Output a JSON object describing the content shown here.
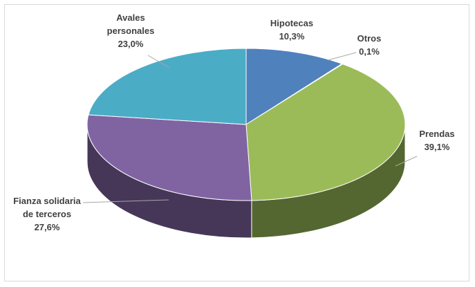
{
  "chart_data": {
    "type": "pie",
    "title": "",
    "slices": [
      {
        "label_lines": [
          "Hipotecas"
        ],
        "value": 10.3,
        "value_label": "10,3%",
        "color": "#4f81bd"
      },
      {
        "label_lines": [
          "Otros"
        ],
        "value": 0.1,
        "value_label": "0,1%",
        "color": "#c0504d"
      },
      {
        "label_lines": [
          "Prendas"
        ],
        "value": 39.1,
        "value_label": "39,1%",
        "color": "#9bbb59"
      },
      {
        "label_lines": [
          "Fianza solidaria",
          "de terceros"
        ],
        "value": 27.6,
        "value_label": "27,6%",
        "color": "#8064a2"
      },
      {
        "label_lines": [
          "Avales",
          "personales"
        ],
        "value": 23.0,
        "value_label": "23,0%",
        "color": "#4bacc6"
      }
    ],
    "style": "3d-pie",
    "legend": "none",
    "data_labels": "outside with leader lines"
  }
}
